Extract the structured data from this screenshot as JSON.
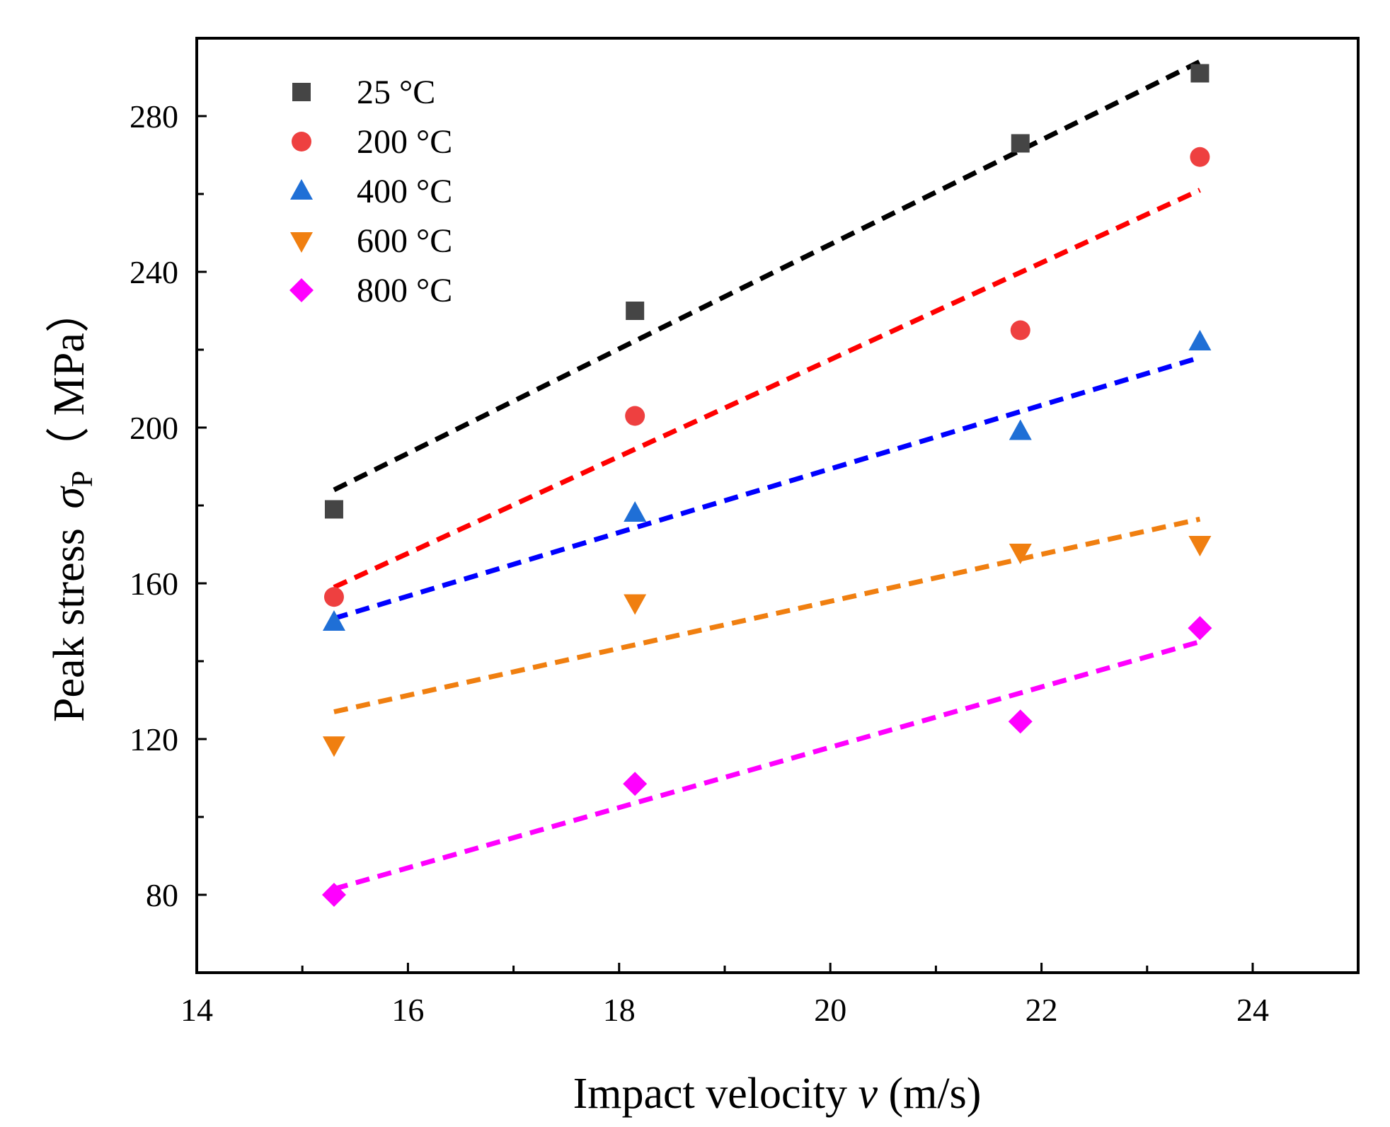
{
  "chart_data": {
    "type": "scatter",
    "title": "",
    "xlabel": {
      "prefix": "Impact velocity ",
      "variable": "v",
      "suffix": " (m/s)"
    },
    "ylabel": {
      "prefix": "Peak stress ",
      "symbol": "σ",
      "subscript": "P",
      "suffix": "（ MPa）"
    },
    "xlim": [
      14,
      25
    ],
    "ylim": [
      60,
      300
    ],
    "x_ticks": [
      14,
      16,
      18,
      20,
      22,
      24
    ],
    "y_ticks": [
      80,
      120,
      160,
      200,
      240,
      280
    ],
    "grid": false,
    "legend_position": "top-left",
    "x": [
      15.3,
      18.15,
      21.8,
      23.5
    ],
    "series": [
      {
        "name": "25 °C",
        "marker": "square",
        "color": "#454545",
        "line_color": "#000000",
        "values": [
          179,
          230,
          273,
          291
        ],
        "fit": [
          184,
          294
        ]
      },
      {
        "name": "200 °C",
        "marker": "circle",
        "color": "#ee4040",
        "line_color": "#ff0000",
        "values": [
          156.5,
          203,
          225,
          269.5
        ],
        "fit": [
          159,
          261
        ]
      },
      {
        "name": "400 °C",
        "marker": "triangle-up",
        "color": "#1f6fd6",
        "line_color": "#0000ff",
        "values": [
          150,
          178,
          199,
          222
        ],
        "fit": [
          151,
          218
        ]
      },
      {
        "name": "600 °C",
        "marker": "triangle-down",
        "color": "#f07f10",
        "line_color": "#f07f10",
        "values": [
          118.5,
          155,
          168,
          170
        ],
        "fit": [
          127,
          176.5
        ]
      },
      {
        "name": "800 °C",
        "marker": "diamond",
        "color": "#ff00ff",
        "line_color": "#ff00ff",
        "values": [
          80,
          108.5,
          124.5,
          148.5
        ],
        "fit": [
          81.5,
          145
        ]
      }
    ]
  }
}
